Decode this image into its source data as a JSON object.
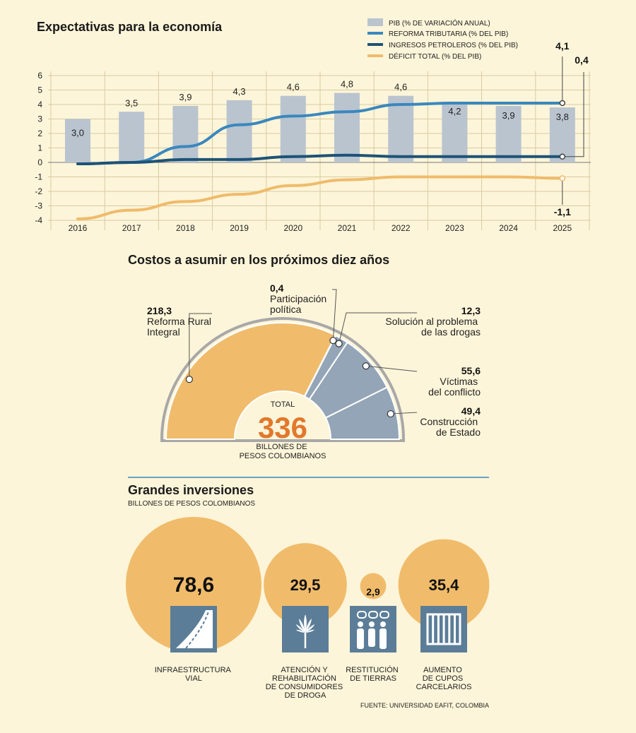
{
  "colors": {
    "background": "#fdf5d9",
    "bar": "#b9c4cf",
    "reforma": "#3a87be",
    "petroleo": "#1d5377",
    "deficit": "#efbb6b",
    "segment_orange": "#f0bc6b",
    "segment_blue": "#93a5b6",
    "total": "#e2782c",
    "icon_bg": "#5b7d98"
  },
  "chart_data": [
    {
      "type": "bar+line",
      "title": "Expectativas para la economía",
      "categories": [
        "2016",
        "2017",
        "2018",
        "2019",
        "2020",
        "2021",
        "2022",
        "2023",
        "2024",
        "2025"
      ],
      "ylim": [
        -4,
        6
      ],
      "yticks": [
        "6",
        "5",
        "4",
        "3",
        "2",
        "1",
        "0",
        "-1",
        "-2",
        "-3",
        "-4"
      ],
      "grid": true,
      "legend_position": "top-right",
      "bars": {
        "name": "PIB (% DE VARIACIÓN ANUAL)",
        "values": [
          3.0,
          3.5,
          3.9,
          4.3,
          4.6,
          4.8,
          4.6,
          4.2,
          3.9,
          3.8
        ],
        "labels": [
          "3,0",
          "3,5",
          "3,9",
          "4,3",
          "4,6",
          "4,8",
          "4,6",
          "4,2",
          "3,9",
          "3,8"
        ]
      },
      "series": [
        {
          "name": "REFORMA TRIBUTARIA (% DEL PIB)",
          "values": [
            -0.1,
            0.0,
            1.1,
            2.6,
            3.2,
            3.5,
            4.0,
            4.1,
            4.1,
            4.1
          ],
          "end_label": "4,1"
        },
        {
          "name": "INGRESOS PETROLEROS (% DEL PIB)",
          "values": [
            -0.1,
            0.0,
            0.2,
            0.2,
            0.4,
            0.5,
            0.4,
            0.4,
            0.4,
            0.4
          ],
          "end_label": "0,4"
        },
        {
          "name": "DÉFICIT TOTAL (% DEL PIB)",
          "values": [
            -3.9,
            -3.3,
            -2.7,
            -2.2,
            -1.6,
            -1.2,
            -1.0,
            -1.0,
            -1.0,
            -1.1
          ],
          "end_label": "-1,1"
        }
      ]
    },
    {
      "type": "pie",
      "title": "Costos a asumir en los próximos diez años",
      "center": {
        "label": "TOTAL",
        "value": "336",
        "unit": "BILLONES DE PESOS COLOMBIANOS"
      },
      "segments": [
        {
          "value": 218.3,
          "label": "218,3",
          "name": "Reforma Rural Integral"
        },
        {
          "value": 0.4,
          "label": "0,4",
          "name": "Participación política"
        },
        {
          "value": 12.3,
          "label": "12,3",
          "name": "Solución al problema de las drogas"
        },
        {
          "value": 55.6,
          "label": "55,6",
          "name": "Víctimas del conflicto"
        },
        {
          "value": 49.4,
          "label": "49,4",
          "name": "Construcción de Estado"
        }
      ]
    },
    {
      "type": "bubble",
      "title": "Grandes inversiones",
      "subtitle": "BILLONES DE PESOS COLOMBIANOS",
      "items": [
        {
          "value": 78.6,
          "label": "78,6",
          "name": "INFRAESTRUCTURA VIAL",
          "icon": "road-icon"
        },
        {
          "value": 29.5,
          "label": "29,5",
          "name": "ATENCIÓN Y REHABILITACIÓN DE CONSUMIDORES DE DROGA",
          "icon": "cannabis-leaf-icon"
        },
        {
          "value": 2.9,
          "label": "2,9",
          "name": "RESTITUCIÓN DE TIERRAS",
          "icon": "family-icon"
        },
        {
          "value": 35.4,
          "label": "35,4",
          "name": "AUMENTO DE CUPOS CARCELARIOS",
          "icon": "prison-bars-icon"
        }
      ]
    }
  ],
  "source": "FUENTE: UNIVERSIDAD EAFIT, COLOMBIA"
}
